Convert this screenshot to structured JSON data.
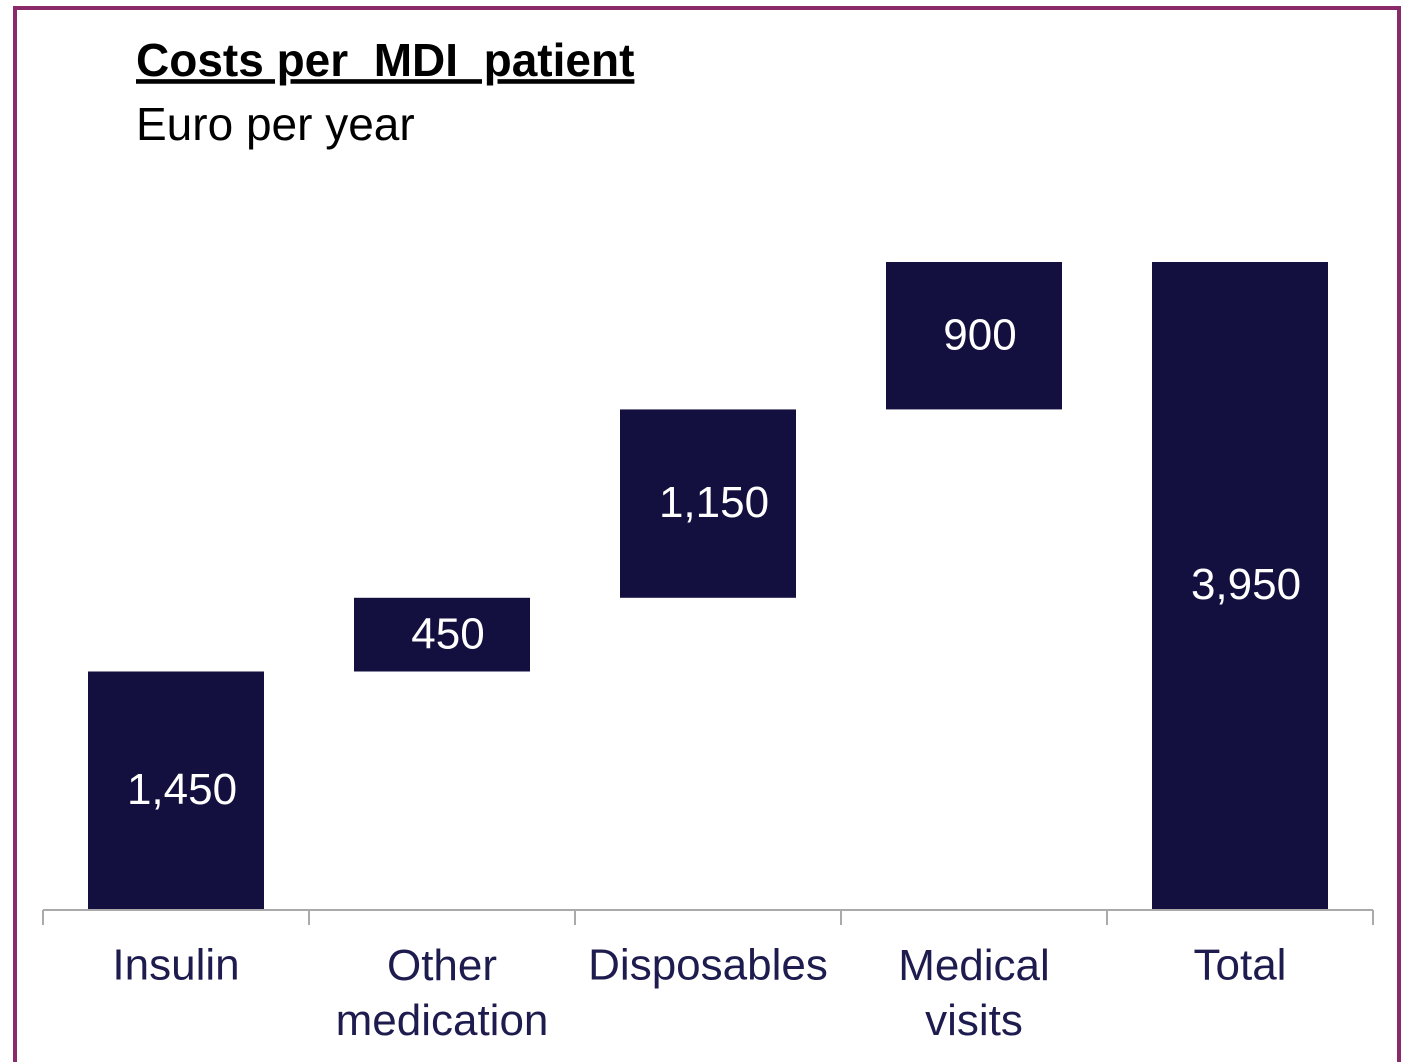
{
  "chart_data": {
    "type": "waterfall",
    "title": "Costs per  MDI  patient",
    "subtitle": "Euro per year",
    "categories": [
      "Insulin",
      "Other medication",
      "Disposables",
      "Medical visits",
      "Total"
    ],
    "values": [
      1450,
      450,
      1150,
      900,
      3950
    ],
    "value_labels": [
      "1,450",
      "450",
      "1,150",
      "900",
      "3,950"
    ],
    "totals": [
      false,
      false,
      false,
      false,
      true
    ],
    "color": "#13103f",
    "ylim": [
      0,
      3950
    ]
  }
}
